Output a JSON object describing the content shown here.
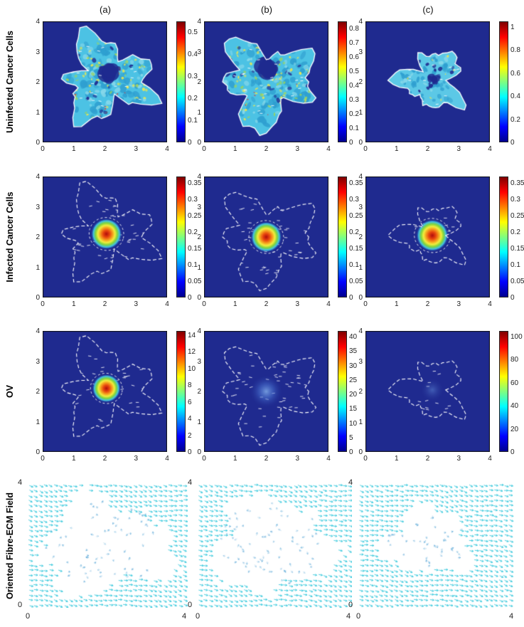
{
  "columns": [
    {
      "label": "(a)"
    },
    {
      "label": "(b)"
    },
    {
      "label": "(c)"
    }
  ],
  "row_labels": [
    "Uninfected Cancer Cells",
    "Infected Cancer Cells",
    "OV",
    "Oriented Fibre-ECM Field"
  ],
  "colors": {
    "background": "#1f2a8f",
    "outline": "#ffffff",
    "arrow": "#35c8dc",
    "arrow_inner": "#5aa8d8",
    "jet": [
      [
        0,
        "#00008f"
      ],
      [
        0.125,
        "#0000ff"
      ],
      [
        0.375,
        "#00ffff"
      ],
      [
        0.625,
        "#ffff00"
      ],
      [
        0.875,
        "#ff0000"
      ],
      [
        1,
        "#800000"
      ]
    ]
  },
  "chart_data": [
    {
      "type": "heatmap",
      "row": "Uninfected Cancer Cells",
      "col": "(a)",
      "row_index": 0,
      "col_index": 0,
      "x_range": [
        0,
        4
      ],
      "y_range": [
        0,
        4
      ],
      "x_ticks": [
        0,
        1,
        2,
        3,
        4
      ],
      "y_ticks": [
        0,
        1,
        2,
        3,
        4
      ],
      "colorbar": {
        "ticks": [
          0,
          0.1,
          0.2,
          0.3,
          0.4,
          0.5
        ],
        "max": 0.55
      },
      "outline": {
        "cx": 2.05,
        "cy": 2.1,
        "r": 1.3,
        "seed": 51
      },
      "style": "mottled",
      "mottle": {
        "base": "#4cc2e4",
        "layers": [
          [
            "#2f9fd0",
            80,
            5
          ],
          [
            "#86d8ea",
            50,
            3.5
          ],
          [
            "#f2e84a",
            60,
            2
          ],
          [
            "#9ad45f",
            30,
            2.2
          ],
          [
            "#d84040",
            10,
            1.3
          ],
          [
            "#1f2a8f",
            22,
            3
          ]
        ],
        "white_dashes": 26,
        "hole": {
          "dx": 0.05,
          "dy": 0.2,
          "r": 0.3
        }
      }
    },
    {
      "type": "heatmap",
      "row": "Uninfected Cancer Cells",
      "col": "(b)",
      "row_index": 0,
      "col_index": 1,
      "x_range": [
        0,
        4
      ],
      "y_range": [
        0,
        4
      ],
      "x_ticks": [
        0,
        1,
        2,
        3,
        4
      ],
      "y_ticks": [
        0,
        1,
        2,
        3,
        4
      ],
      "colorbar": {
        "ticks": [
          0,
          0.1,
          0.2,
          0.3,
          0.4,
          0.5,
          0.6,
          0.7,
          0.8
        ],
        "max": 0.85
      },
      "outline": {
        "cx": 2.0,
        "cy": 2.0,
        "r": 1.35,
        "seed": 63
      },
      "style": "mottled",
      "mottle": {
        "base": "#4cc2e4",
        "layers": [
          [
            "#2f9fd0",
            85,
            5
          ],
          [
            "#86d8ea",
            50,
            3.5
          ],
          [
            "#f2e84a",
            65,
            2
          ],
          [
            "#9ad45f",
            32,
            2.2
          ],
          [
            "#d84040",
            12,
            1.3
          ],
          [
            "#1f2a8f",
            20,
            3
          ]
        ],
        "white_dashes": 28,
        "hole": {
          "dx": 0.0,
          "dy": 0.45,
          "r": 0.33
        }
      }
    },
    {
      "type": "heatmap",
      "row": "Uninfected Cancer Cells",
      "col": "(c)",
      "row_index": 0,
      "col_index": 2,
      "x_range": [
        0,
        4
      ],
      "y_range": [
        0,
        4
      ],
      "x_ticks": [
        0,
        1,
        2,
        3,
        4
      ],
      "y_ticks": [
        0,
        1,
        2,
        3,
        4
      ],
      "colorbar": {
        "ticks": [
          0,
          0.2,
          0.4,
          0.6,
          0.8,
          1
        ],
        "max": 1.05
      },
      "outline": {
        "cx": 2.15,
        "cy": 2.05,
        "r": 0.92,
        "seed": 77
      },
      "style": "mottled",
      "mottle": {
        "base": "#5cc8e6",
        "layers": [
          [
            "#2f9fd0",
            48,
            3.5
          ],
          [
            "#86d8ea",
            30,
            3
          ],
          [
            "#f2e84a",
            10,
            1.5
          ],
          [
            "#1f2a8f",
            16,
            2.6
          ]
        ],
        "white_dashes": 12,
        "hole": {
          "dx": 0.0,
          "dy": 0.05,
          "r": 0.14
        }
      }
    },
    {
      "type": "heatmap",
      "row": "Infected Cancer Cells",
      "col": "(a)",
      "row_index": 1,
      "col_index": 0,
      "x_range": [
        0,
        4
      ],
      "y_range": [
        0,
        4
      ],
      "x_ticks": [
        0,
        1,
        2,
        3,
        4
      ],
      "y_ticks": [
        0,
        1,
        2,
        3,
        4
      ],
      "colorbar": {
        "ticks": [
          0,
          0.05,
          0.1,
          0.15,
          0.2,
          0.25,
          0.3,
          0.35
        ],
        "max": 0.37
      },
      "outline": {
        "cx": 2.05,
        "cy": 2.1,
        "r": 1.3,
        "seed": 51
      },
      "style": "gaussian",
      "dashes": 46,
      "core": {
        "r": 0.5,
        "ring": true,
        "stops": [
          [
            0,
            "#b00c0c"
          ],
          [
            0.22,
            "#e8470f"
          ],
          [
            0.4,
            "#f5a01e"
          ],
          [
            0.55,
            "#f2ee3e"
          ],
          [
            0.7,
            "#7fd43c"
          ],
          [
            0.85,
            "#3fc0e8"
          ],
          [
            1,
            "rgba(31,42,143,0)"
          ]
        ]
      }
    },
    {
      "type": "heatmap",
      "row": "Infected Cancer Cells",
      "col": "(b)",
      "row_index": 1,
      "col_index": 1,
      "x_range": [
        0,
        4
      ],
      "y_range": [
        0,
        4
      ],
      "x_ticks": [
        0,
        1,
        2,
        3,
        4
      ],
      "y_ticks": [
        0,
        1,
        2,
        3,
        4
      ],
      "colorbar": {
        "ticks": [
          0,
          0.05,
          0.1,
          0.15,
          0.2,
          0.25,
          0.3,
          0.35
        ],
        "max": 0.37
      },
      "outline": {
        "cx": 2.0,
        "cy": 2.0,
        "r": 1.35,
        "seed": 63
      },
      "style": "gaussian",
      "dashes": 56,
      "core": {
        "r": 0.5,
        "ring": true,
        "stops": [
          [
            0,
            "#b00c0c"
          ],
          [
            0.22,
            "#e8470f"
          ],
          [
            0.4,
            "#f5a01e"
          ],
          [
            0.55,
            "#f2ee3e"
          ],
          [
            0.7,
            "#7fd43c"
          ],
          [
            0.85,
            "#3fc0e8"
          ],
          [
            1,
            "rgba(31,42,143,0)"
          ]
        ]
      }
    },
    {
      "type": "heatmap",
      "row": "Infected Cancer Cells",
      "col": "(c)",
      "row_index": 1,
      "col_index": 2,
      "x_range": [
        0,
        4
      ],
      "y_range": [
        0,
        4
      ],
      "x_ticks": [
        0,
        1,
        2,
        3,
        4
      ],
      "y_ticks": [
        0,
        1,
        2,
        3,
        4
      ],
      "colorbar": {
        "ticks": [
          0,
          0.05,
          0.1,
          0.15,
          0.2,
          0.25,
          0.3,
          0.35
        ],
        "max": 0.37
      },
      "outline": {
        "cx": 2.15,
        "cy": 2.05,
        "r": 0.92,
        "seed": 77
      },
      "style": "gaussian",
      "dashes": 16,
      "core": {
        "r": 0.52,
        "ring": true,
        "stops": [
          [
            0,
            "#b00c0c"
          ],
          [
            0.22,
            "#e8470f"
          ],
          [
            0.4,
            "#f5a01e"
          ],
          [
            0.55,
            "#f2ee3e"
          ],
          [
            0.7,
            "#7fd43c"
          ],
          [
            0.85,
            "#3fc0e8"
          ],
          [
            1,
            "rgba(31,42,143,0)"
          ]
        ]
      }
    },
    {
      "type": "heatmap",
      "row": "OV",
      "col": "(a)",
      "row_index": 2,
      "col_index": 0,
      "x_range": [
        0,
        4
      ],
      "y_range": [
        0,
        4
      ],
      "x_ticks": [
        0,
        1,
        2,
        3,
        4
      ],
      "y_ticks": [
        0,
        1,
        2,
        3,
        4
      ],
      "colorbar": {
        "ticks": [
          0,
          2,
          4,
          6,
          8,
          10,
          12,
          14
        ],
        "max": 14.5
      },
      "outline": {
        "cx": 2.05,
        "cy": 2.1,
        "r": 1.3,
        "seed": 51
      },
      "style": "gaussian",
      "dashes": 42,
      "core": {
        "r": 0.46,
        "ring": true,
        "stops": [
          [
            0,
            "#b00c0c"
          ],
          [
            0.22,
            "#e8470f"
          ],
          [
            0.4,
            "#f5a01e"
          ],
          [
            0.55,
            "#f2ee3e"
          ],
          [
            0.7,
            "#7fd43c"
          ],
          [
            0.85,
            "#3fc0e8"
          ],
          [
            1,
            "rgba(31,42,143,0)"
          ]
        ]
      }
    },
    {
      "type": "heatmap",
      "row": "OV",
      "col": "(b)",
      "row_index": 2,
      "col_index": 1,
      "x_range": [
        0,
        4
      ],
      "y_range": [
        0,
        4
      ],
      "x_ticks": [
        0,
        1,
        2,
        3,
        4
      ],
      "y_ticks": [
        0,
        1,
        2,
        3,
        4
      ],
      "colorbar": {
        "ticks": [
          0,
          5,
          10,
          15,
          20,
          25,
          30,
          35,
          40
        ],
        "max": 42
      },
      "outline": {
        "cx": 2.0,
        "cy": 2.0,
        "r": 1.35,
        "seed": 63
      },
      "style": "gaussian",
      "dashes": 56,
      "core": {
        "r": 0.55,
        "ring": false,
        "stops": [
          [
            0,
            "rgba(120,160,225,0.95)"
          ],
          [
            0.45,
            "rgba(70,110,205,0.55)"
          ],
          [
            1,
            "rgba(31,42,143,0)"
          ]
        ]
      }
    },
    {
      "type": "heatmap",
      "row": "OV",
      "col": "(c)",
      "row_index": 2,
      "col_index": 2,
      "x_range": [
        0,
        4
      ],
      "y_range": [
        0,
        4
      ],
      "x_ticks": [
        0,
        1,
        2,
        3,
        4
      ],
      "y_ticks": [
        0,
        1,
        2,
        3,
        4
      ],
      "colorbar": {
        "ticks": [
          0,
          20,
          40,
          60,
          80,
          100
        ],
        "max": 105
      },
      "outline": {
        "cx": 2.15,
        "cy": 2.05,
        "r": 0.92,
        "seed": 77
      },
      "style": "gaussian",
      "dashes": 14,
      "core": {
        "r": 0.4,
        "ring": false,
        "stops": [
          [
            0,
            "rgba(90,130,210,0.6)"
          ],
          [
            1,
            "rgba(31,42,143,0)"
          ]
        ]
      }
    },
    {
      "type": "quiver",
      "row": "Oriented Fibre-ECM Field",
      "col": "(a)",
      "row_index": 3,
      "col_index": 0,
      "x_ticks": [
        0,
        4
      ],
      "y_ticks": [
        0,
        4
      ],
      "seed": 101,
      "inner_count": 70,
      "hole": {
        "cx": 0.47,
        "cy": 0.5,
        "rx": 0.4,
        "ry": 0.37
      }
    },
    {
      "type": "quiver",
      "row": "Oriented Fibre-ECM Field",
      "col": "(b)",
      "row_index": 3,
      "col_index": 1,
      "x_ticks": [
        0,
        4
      ],
      "y_ticks": [
        0,
        4
      ],
      "seed": 202,
      "inner_count": 82,
      "hole": {
        "cx": 0.47,
        "cy": 0.5,
        "rx": 0.39,
        "ry": 0.37
      }
    },
    {
      "type": "quiver",
      "row": "Oriented Fibre-ECM Field",
      "col": "(c)",
      "row_index": 3,
      "col_index": 2,
      "x_ticks": [
        0,
        4
      ],
      "y_ticks": [
        0,
        4
      ],
      "seed": 303,
      "inner_count": 40,
      "hole": {
        "cx": 0.44,
        "cy": 0.47,
        "rx": 0.27,
        "ry": 0.26
      }
    }
  ]
}
